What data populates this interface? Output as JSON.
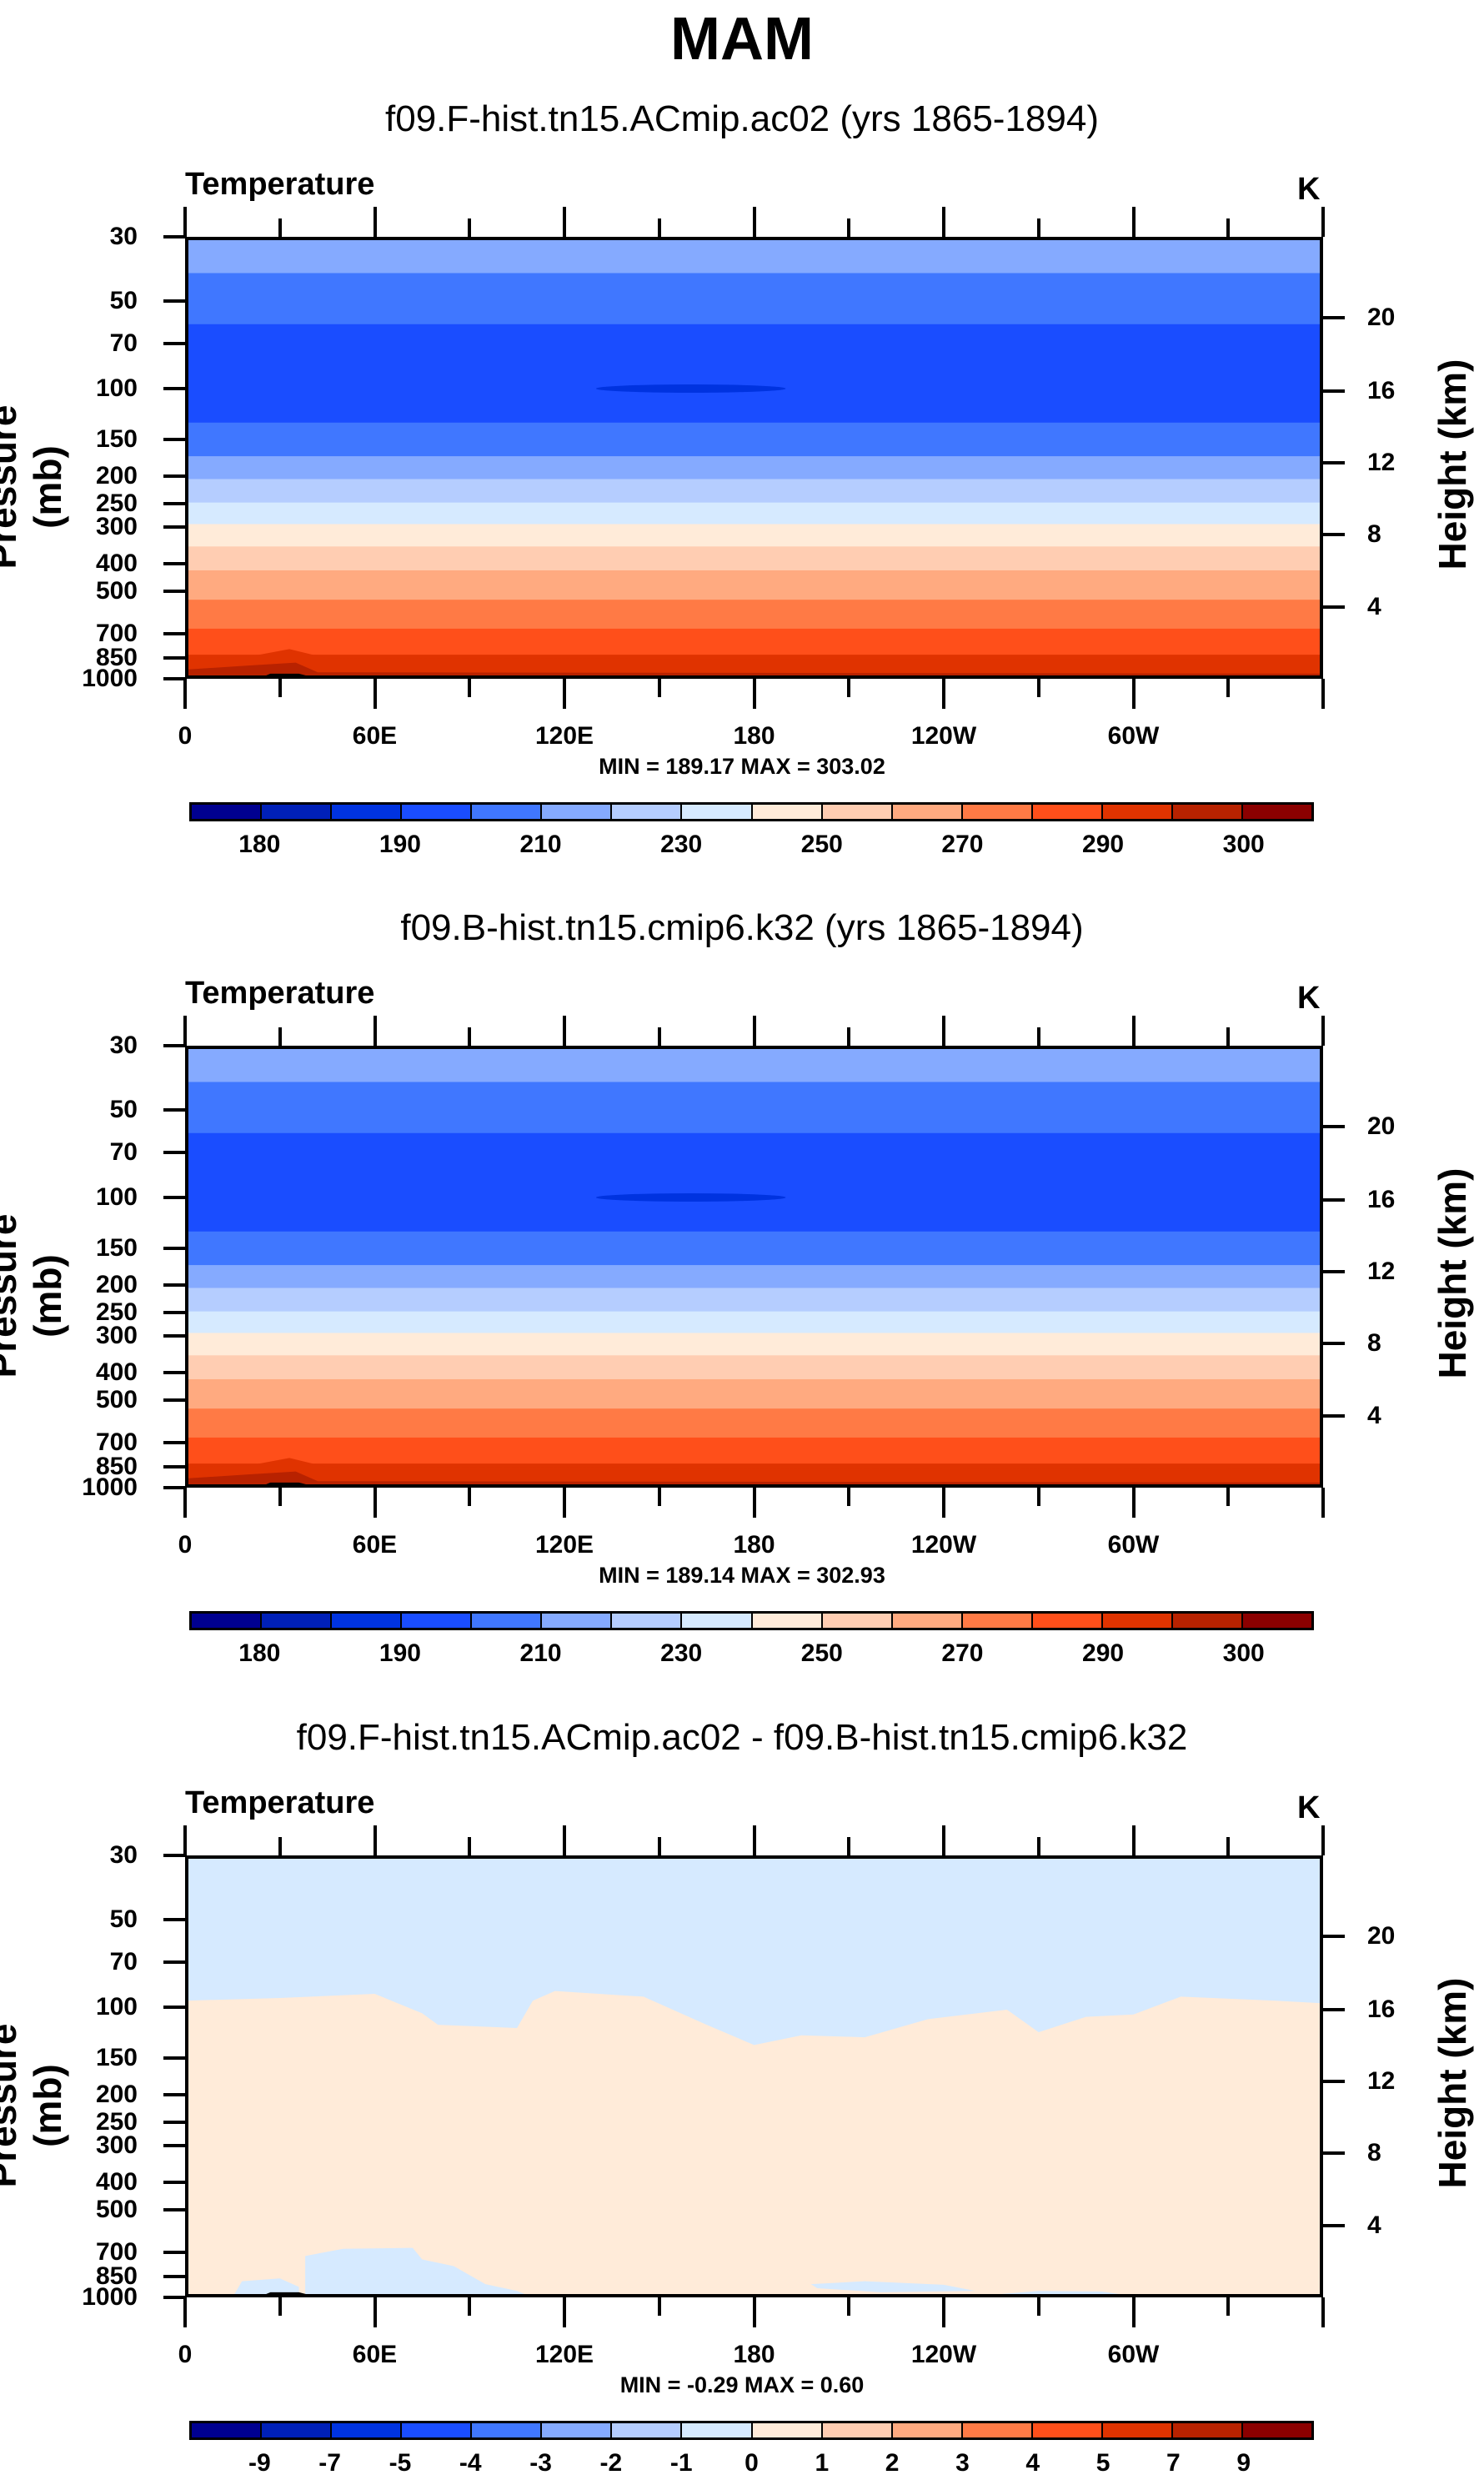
{
  "chart_data": [
    {
      "type": "heatmap",
      "suptitle": "MAM",
      "title": "f09.F-hist.tn15.ACmip.ac02 (yrs 1865-1894)",
      "variable": "Temperature",
      "units": "K",
      "ylabel": "Pressure (mb)",
      "ylabel_right": "Height (km)",
      "yticks": [
        30,
        50,
        70,
        100,
        150,
        200,
        250,
        300,
        400,
        500,
        700,
        850,
        1000
      ],
      "yticks_right": [
        {
          "km": 20,
          "p": 57
        },
        {
          "km": 16,
          "p": 102
        },
        {
          "km": 12,
          "p": 180
        },
        {
          "km": 8,
          "p": 319
        },
        {
          "km": 4,
          "p": 565
        }
      ],
      "ylim": [
        1000,
        30
      ],
      "xlim": [
        0,
        360
      ],
      "xticks": [
        {
          "lon": 0,
          "label": "0"
        },
        {
          "lon": 60,
          "label": "60E"
        },
        {
          "lon": 120,
          "label": "120E"
        },
        {
          "lon": 180,
          "label": "180"
        },
        {
          "lon": 240,
          "label": "120W"
        },
        {
          "lon": 300,
          "label": "60W"
        }
      ],
      "min_max": "MIN = 189.17   MAX = 303.02",
      "bands": [
        [
          30,
          40,
          5
        ],
        [
          40,
          60,
          4
        ],
        [
          60,
          131,
          3
        ],
        [
          131,
          171,
          4
        ],
        [
          171,
          205,
          5
        ],
        [
          205,
          247,
          6
        ],
        [
          247,
          293,
          7
        ],
        [
          293,
          350,
          8
        ],
        [
          350,
          423,
          9
        ],
        [
          423,
          534,
          10
        ],
        [
          534,
          672,
          11
        ],
        [
          672,
          826,
          12
        ],
        [
          826,
          937,
          13
        ],
        [
          937,
          1000,
          14
        ]
      ],
      "cbar_labels": [
        "180",
        "190",
        "210",
        "230",
        "250",
        "270",
        "290",
        "300"
      ],
      "cbar_label_every": 2
    },
    {
      "type": "heatmap",
      "title": "f09.B-hist.tn15.cmip6.k32 (yrs 1865-1894)",
      "variable": "Temperature",
      "units": "K",
      "ylabel": "Pressure (mb)",
      "ylabel_right": "Height (km)",
      "min_max": "MIN = 189.14   MAX = 302.93",
      "bands": [
        [
          30,
          40,
          5
        ],
        [
          40,
          60,
          4
        ],
        [
          60,
          131,
          3
        ],
        [
          131,
          171,
          4
        ],
        [
          171,
          205,
          5
        ],
        [
          205,
          247,
          6
        ],
        [
          247,
          293,
          7
        ],
        [
          293,
          350,
          8
        ],
        [
          350,
          423,
          9
        ],
        [
          423,
          534,
          10
        ],
        [
          534,
          672,
          11
        ],
        [
          672,
          826,
          12
        ],
        [
          826,
          937,
          13
        ],
        [
          937,
          1000,
          14
        ]
      ],
      "cbar_labels": [
        "180",
        "190",
        "210",
        "230",
        "250",
        "270",
        "290",
        "300"
      ],
      "cbar_label_every": 2
    },
    {
      "type": "heatmap",
      "title": "f09.F-hist.tn15.ACmip.ac02 - f09.B-hist.tn15.cmip6.k32",
      "variable": "Temperature",
      "units": "K",
      "ylabel": "Pressure (mb)",
      "ylabel_right": "Height (km)",
      "min_max": "MIN =  -0.29   MAX =   0.60",
      "upper_region_color": 7,
      "lower_region_color": 8,
      "boundary_lon_p": [
        [
          0,
          95
        ],
        [
          30,
          93
        ],
        [
          60,
          90
        ],
        [
          75,
          105
        ],
        [
          80,
          115
        ],
        [
          105,
          118
        ],
        [
          110,
          95
        ],
        [
          117,
          88
        ],
        [
          145,
          92
        ],
        [
          165,
          115
        ],
        [
          180,
          135
        ],
        [
          195,
          125
        ],
        [
          215,
          127
        ],
        [
          235,
          110
        ],
        [
          260,
          102
        ],
        [
          270,
          122
        ],
        [
          285,
          108
        ],
        [
          300,
          106
        ],
        [
          315,
          92
        ],
        [
          345,
          95
        ],
        [
          360,
          97
        ]
      ],
      "cbar_labels": [
        "-9",
        "-7",
        "-5",
        "-4",
        "-3",
        "-2",
        "-1",
        "0",
        "1",
        "2",
        "3",
        "4",
        "5",
        "7",
        "9"
      ],
      "cbar_label_every": 1
    }
  ],
  "palette": [
    "#000090",
    "#0020b8",
    "#0033e0",
    "#1a4dff",
    "#4077ff",
    "#85aaff",
    "#b5cdff",
    "#d6eaff",
    "#ffebd9",
    "#ffcdb2",
    "#ffaa80",
    "#ff7a45",
    "#ff4f1a",
    "#e03300",
    "#b82200",
    "#8b0000"
  ],
  "terrain_color": "#000000"
}
